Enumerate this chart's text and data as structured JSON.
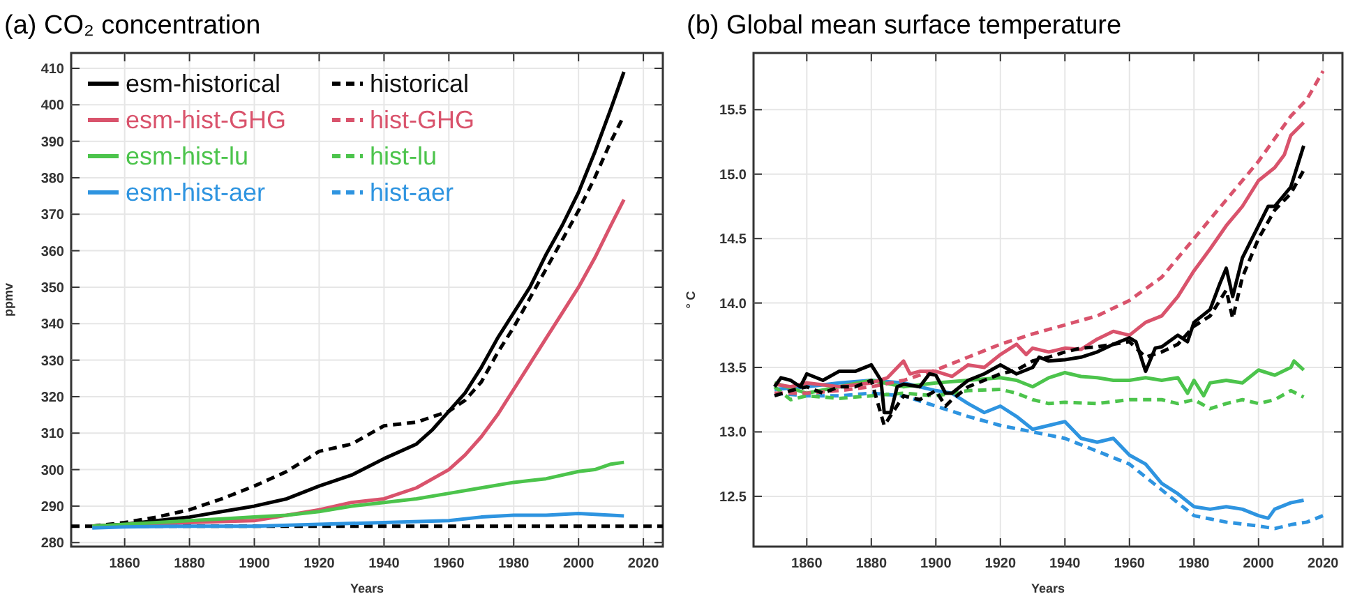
{
  "chart_data": [
    {
      "type": "line",
      "title": "(a) CO₂ concentration",
      "xlabel": "Years",
      "ylabel": "ppmv",
      "xlim": [
        1843.5,
        2026
      ],
      "xticks": [
        1860,
        1880,
        1900,
        1920,
        1940,
        1960,
        1980,
        2000,
        2020
      ],
      "ylim": [
        278.9,
        414.2
      ],
      "yticks": [
        280,
        290,
        300,
        310,
        320,
        330,
        340,
        350,
        360,
        370,
        380,
        390,
        400,
        410
      ],
      "grid": true,
      "legend": "top left",
      "ref_lines": [
        {
          "axis": "y",
          "value": 284.5,
          "color": "#000000",
          "line_style": "dashed"
        }
      ],
      "series": [
        {
          "name": "esm-historical",
          "color": "#000000",
          "line_style": "solid",
          "x": [
            1850,
            1860,
            1870,
            1880,
            1890,
            1900,
            1910,
            1920,
            1930,
            1940,
            1950,
            1955,
            1960,
            1965,
            1970,
            1975,
            1980,
            1985,
            1990,
            1995,
            2000,
            2005,
            2010,
            2014
          ],
          "values": [
            284.5,
            285,
            286,
            287,
            288.5,
            290,
            292,
            295.5,
            298.5,
            303,
            307,
            311,
            316,
            321,
            328,
            336,
            343,
            350,
            359,
            367,
            376,
            387,
            399,
            409
          ]
        },
        {
          "name": "historical",
          "color": "#000000",
          "line_style": "dashed",
          "x": [
            1850,
            1860,
            1870,
            1880,
            1890,
            1900,
            1910,
            1920,
            1930,
            1940,
            1950,
            1960,
            1965,
            1970,
            1975,
            1980,
            1985,
            1990,
            1995,
            2000,
            2005,
            2010,
            2014
          ],
          "values": [
            284.5,
            285.5,
            287,
            289,
            292,
            295.5,
            299.5,
            305,
            307,
            312,
            313,
            316,
            319,
            324,
            332,
            339,
            347,
            355,
            363,
            371,
            380,
            390,
            397
          ]
        },
        {
          "name": "esm-hist-GHG",
          "color": "#d9536c",
          "line_style": "solid",
          "x": [
            1850,
            1870,
            1880,
            1890,
            1900,
            1910,
            1920,
            1930,
            1940,
            1950,
            1960,
            1965,
            1970,
            1975,
            1980,
            1985,
            1990,
            1995,
            2000,
            2005,
            2010,
            2014
          ],
          "values": [
            284.5,
            285,
            285.5,
            285.8,
            286,
            287.5,
            289,
            291,
            292,
            295,
            300,
            304,
            309,
            315,
            322,
            329,
            336,
            343,
            350,
            358,
            367,
            374
          ]
        },
        {
          "name": "hist-GHG",
          "color": "#d9536c",
          "line_style": "dashed"
        },
        {
          "name": "esm-hist-lu",
          "color": "#4cc44c",
          "line_style": "solid",
          "x": [
            1850,
            1860,
            1870,
            1880,
            1890,
            1900,
            1910,
            1920,
            1930,
            1940,
            1950,
            1960,
            1970,
            1980,
            1990,
            2000,
            2005,
            2010,
            2014
          ],
          "values": [
            284.5,
            285,
            285.5,
            286,
            286.5,
            287,
            287.5,
            288.5,
            290,
            291,
            292,
            293.5,
            295,
            296.5,
            297.5,
            299.5,
            300,
            301.5,
            302
          ]
        },
        {
          "name": "hist-lu",
          "color": "#4cc44c",
          "line_style": "dashed"
        },
        {
          "name": "esm-hist-aer",
          "color": "#2e94e0",
          "line_style": "solid",
          "x": [
            1850,
            1860,
            1880,
            1900,
            1920,
            1940,
            1960,
            1970,
            1980,
            1990,
            2000,
            2010,
            2014
          ],
          "values": [
            284,
            284.3,
            284.5,
            284.5,
            285,
            285.5,
            286,
            287,
            287.5,
            287.5,
            288,
            287.5,
            287.3
          ]
        },
        {
          "name": "hist-aer",
          "color": "#2e94e0",
          "line_style": "dashed"
        }
      ]
    },
    {
      "type": "line",
      "title": "(b) Global mean surface temperature",
      "xlabel": "Years",
      "ylabel": "° C",
      "xlim": [
        1843.5,
        2026
      ],
      "xticks": [
        1860,
        1880,
        1900,
        1920,
        1940,
        1960,
        1980,
        2000,
        2020
      ],
      "ylim": [
        12.11,
        15.94
      ],
      "yticks": [
        {
          "value": 12.5,
          "label": "12.5"
        },
        {
          "value": 13,
          "label": "13.0"
        },
        {
          "value": 13.5,
          "label": "13.5"
        },
        {
          "value": 14,
          "label": "14.0"
        },
        {
          "value": 14.5,
          "label": "14.5"
        },
        {
          "value": 15,
          "label": "15.0"
        },
        {
          "value": 15.5,
          "label": "15.5"
        }
      ],
      "grid": true,
      "series": [
        {
          "color": "#2e94e0",
          "line_style": "dashed",
          "x": [
            1850,
            1860,
            1870,
            1880,
            1890,
            1900,
            1910,
            1920,
            1930,
            1940,
            1950,
            1960,
            1970,
            1980,
            1990,
            2000,
            2005,
            2010,
            2015,
            2020
          ],
          "values": [
            13.3,
            13.28,
            13.28,
            13.3,
            13.28,
            13.2,
            13.12,
            13.05,
            13.0,
            12.95,
            12.85,
            12.75,
            12.55,
            12.35,
            12.3,
            12.27,
            12.25,
            12.28,
            12.3,
            12.35
          ]
        },
        {
          "color": "#2e94e0",
          "line_style": "solid",
          "x": [
            1850,
            1860,
            1870,
            1880,
            1890,
            1900,
            1905,
            1910,
            1915,
            1920,
            1925,
            1930,
            1935,
            1940,
            1945,
            1950,
            1955,
            1960,
            1965,
            1970,
            1975,
            1980,
            1985,
            1990,
            1995,
            2000,
            2003,
            2005,
            2010,
            2014
          ],
          "values": [
            13.33,
            13.35,
            13.38,
            13.4,
            13.38,
            13.32,
            13.3,
            13.22,
            13.15,
            13.2,
            13.12,
            13.02,
            13.05,
            13.08,
            12.95,
            12.92,
            12.95,
            12.82,
            12.75,
            12.6,
            12.52,
            12.42,
            12.4,
            12.42,
            12.4,
            12.35,
            12.33,
            12.4,
            12.45,
            12.47
          ]
        },
        {
          "color": "#4cc44c",
          "line_style": "dashed",
          "x": [
            1850,
            1855,
            1860,
            1870,
            1880,
            1890,
            1900,
            1910,
            1920,
            1925,
            1930,
            1935,
            1940,
            1950,
            1960,
            1970,
            1975,
            1980,
            1985,
            1990,
            1995,
            2000,
            2005,
            2010,
            2014
          ],
          "values": [
            13.35,
            13.25,
            13.28,
            13.26,
            13.28,
            13.3,
            13.28,
            13.32,
            13.33,
            13.3,
            13.25,
            13.22,
            13.23,
            13.22,
            13.25,
            13.25,
            13.22,
            13.25,
            13.18,
            13.22,
            13.25,
            13.22,
            13.25,
            13.32,
            13.27
          ]
        },
        {
          "color": "#4cc44c",
          "line_style": "solid",
          "x": [
            1850,
            1860,
            1870,
            1880,
            1890,
            1900,
            1910,
            1920,
            1925,
            1930,
            1935,
            1940,
            1945,
            1950,
            1955,
            1960,
            1965,
            1970,
            1975,
            1978,
            1980,
            1983,
            1985,
            1990,
            1995,
            2000,
            2005,
            2010,
            2011,
            2014
          ],
          "values": [
            13.38,
            13.3,
            13.35,
            13.4,
            13.35,
            13.38,
            13.4,
            13.42,
            13.4,
            13.35,
            13.42,
            13.46,
            13.43,
            13.42,
            13.4,
            13.4,
            13.42,
            13.4,
            13.42,
            13.3,
            13.4,
            13.28,
            13.38,
            13.4,
            13.38,
            13.48,
            13.44,
            13.5,
            13.55,
            13.48
          ]
        },
        {
          "color": "#d9536c",
          "line_style": "dashed",
          "x": [
            1850,
            1860,
            1870,
            1880,
            1890,
            1900,
            1910,
            1920,
            1930,
            1940,
            1950,
            1960,
            1970,
            1980,
            1990,
            2000,
            2010,
            2015,
            2020
          ],
          "values": [
            13.3,
            13.3,
            13.32,
            13.35,
            13.4,
            13.48,
            13.58,
            13.68,
            13.76,
            13.83,
            13.9,
            14.02,
            14.2,
            14.5,
            14.8,
            15.1,
            15.45,
            15.58,
            15.8
          ]
        },
        {
          "color": "#d9536c",
          "line_style": "solid",
          "x": [
            1850,
            1855,
            1860,
            1870,
            1880,
            1885,
            1890,
            1892,
            1895,
            1900,
            1905,
            1910,
            1915,
            1920,
            1925,
            1928,
            1930,
            1935,
            1940,
            1945,
            1950,
            1955,
            1960,
            1965,
            1970,
            1975,
            1980,
            1985,
            1990,
            1995,
            2000,
            2005,
            2008,
            2010,
            2014
          ],
          "values": [
            13.37,
            13.35,
            13.38,
            13.35,
            13.38,
            13.42,
            13.55,
            13.45,
            13.47,
            13.47,
            13.43,
            13.52,
            13.5,
            13.6,
            13.68,
            13.6,
            13.65,
            13.62,
            13.65,
            13.64,
            13.72,
            13.78,
            13.75,
            13.85,
            13.9,
            14.05,
            14.25,
            14.42,
            14.6,
            14.75,
            14.95,
            15.05,
            15.15,
            15.3,
            15.4
          ]
        },
        {
          "color": "#000000",
          "line_style": "dashed",
          "x": [
            1850,
            1855,
            1860,
            1865,
            1870,
            1875,
            1880,
            1884,
            1890,
            1895,
            1900,
            1903,
            1905,
            1910,
            1915,
            1920,
            1925,
            1930,
            1935,
            1940,
            1945,
            1950,
            1955,
            1960,
            1965,
            1970,
            1975,
            1980,
            1985,
            1990,
            1992,
            1995,
            2000,
            2005,
            2010,
            2014
          ],
          "values": [
            13.28,
            13.32,
            13.35,
            13.3,
            13.35,
            13.35,
            13.4,
            13.05,
            13.28,
            13.25,
            13.32,
            13.2,
            13.25,
            13.35,
            13.4,
            13.45,
            13.48,
            13.55,
            13.58,
            13.62,
            13.65,
            13.66,
            13.68,
            13.7,
            13.58,
            13.62,
            13.68,
            13.82,
            13.9,
            14.1,
            13.88,
            14.2,
            14.5,
            14.72,
            14.85,
            15.03
          ]
        },
        {
          "color": "#000000",
          "line_style": "solid",
          "x": [
            1850,
            1852,
            1855,
            1858,
            1860,
            1865,
            1870,
            1875,
            1880,
            1883,
            1884,
            1886,
            1888,
            1890,
            1895,
            1898,
            1900,
            1903,
            1905,
            1910,
            1915,
            1920,
            1925,
            1930,
            1932,
            1935,
            1940,
            1945,
            1950,
            1955,
            1960,
            1962,
            1965,
            1968,
            1970,
            1975,
            1978,
            1980,
            1985,
            1988,
            1990,
            1992,
            1995,
            2000,
            2003,
            2005,
            2010,
            2014
          ],
          "values": [
            13.35,
            13.42,
            13.4,
            13.35,
            13.45,
            13.4,
            13.47,
            13.47,
            13.52,
            13.4,
            13.15,
            13.15,
            13.35,
            13.37,
            13.35,
            13.45,
            13.44,
            13.3,
            13.3,
            13.4,
            13.45,
            13.52,
            13.45,
            13.5,
            13.58,
            13.55,
            13.56,
            13.58,
            13.62,
            13.68,
            13.73,
            13.7,
            13.47,
            13.65,
            13.66,
            13.75,
            13.7,
            13.85,
            13.95,
            14.15,
            14.27,
            14.05,
            14.35,
            14.6,
            14.75,
            14.75,
            14.9,
            15.22
          ]
        }
      ]
    }
  ]
}
